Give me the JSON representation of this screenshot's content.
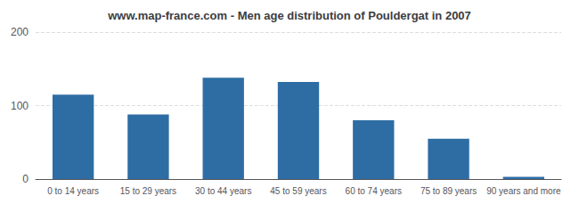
{
  "chart_data": {
    "type": "bar",
    "title": "www.map-france.com - Men age distribution of Pouldergat in 2007",
    "categories": [
      "0 to 14 years",
      "15 to 29 years",
      "30 to 44 years",
      "45 to 59 years",
      "60 to 74 years",
      "75 to 89 years",
      "90 years and more"
    ],
    "values": [
      115,
      88,
      138,
      132,
      80,
      55,
      3
    ],
    "color": "#2e6da4",
    "ylim": [
      0,
      200
    ],
    "yticks": [
      0,
      100,
      200
    ],
    "grid": true
  }
}
